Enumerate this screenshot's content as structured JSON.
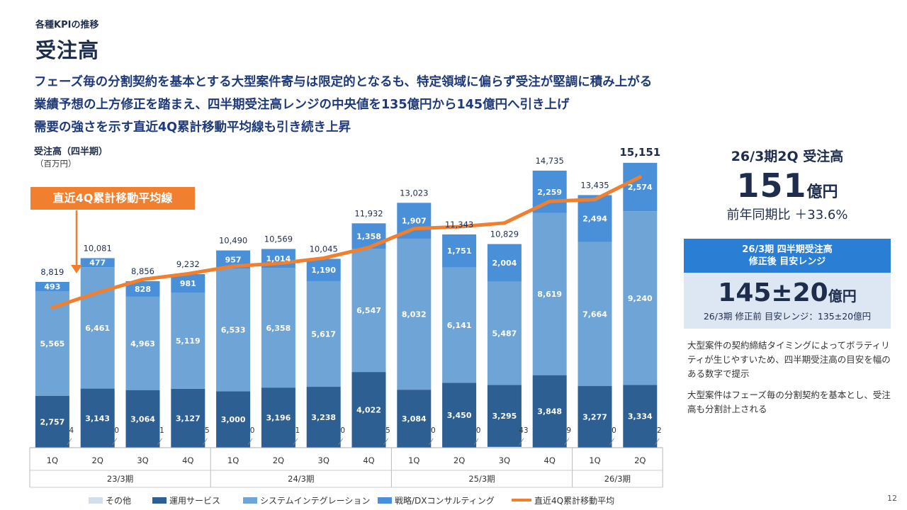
{
  "section": "各種KPIの推移",
  "title": "受注高",
  "headlines": [
    "フェーズ毎の分割契約を基本とする大型案件寄与は限定的となるも、特定領域に偏らず受注が堅調に積み上がる",
    "業績予想の上方修正を踏まえ、四半期受注高レンジの中央値を135億円から145億円へ引き上げ",
    "需要の強さを示す直近4Q累計移動平均線も引き続き上昇"
  ],
  "chart_data": {
    "type": "bar",
    "stacked": true,
    "title": "受注高（四半期）",
    "unit_label": "（百万円）",
    "callout": "直近4Q累計移動平均線",
    "categories": [
      "1Q",
      "2Q",
      "3Q",
      "4Q",
      "1Q",
      "2Q",
      "3Q",
      "4Q",
      "1Q",
      "2Q",
      "3Q",
      "4Q",
      "1Q",
      "2Q"
    ],
    "periods": [
      {
        "label": "23/3期",
        "count": 4
      },
      {
        "label": "24/3期",
        "count": 4
      },
      {
        "label": "25/3期",
        "count": 4
      },
      {
        "label": "26/3期",
        "count": 2
      }
    ],
    "series": [
      {
        "name": "その他",
        "color": "#d4dfec",
        "values": [
          4,
          0,
          1,
          5,
          0,
          1,
          0,
          5,
          0,
          0,
          43,
          9,
          0,
          2
        ]
      },
      {
        "name": "運用サービス",
        "color": "#2d5f93",
        "values": [
          2757,
          3143,
          3064,
          3127,
          3000,
          3196,
          3238,
          4022,
          3084,
          3450,
          3295,
          3848,
          3277,
          3334
        ]
      },
      {
        "name": "システムインテグレーション",
        "color": "#6fa5d6",
        "values": [
          5565,
          6461,
          4963,
          5119,
          6533,
          6358,
          5617,
          6547,
          8032,
          6141,
          5487,
          8619,
          7664,
          9240
        ]
      },
      {
        "name": "戦略/DXコンサルティング",
        "color": "#4a90d9",
        "values": [
          493,
          477,
          828,
          981,
          957,
          1014,
          1190,
          1358,
          1907,
          1751,
          2004,
          2259,
          2494,
          2574
        ]
      }
    ],
    "totals": [
      "8,819",
      "10,081",
      "8,856",
      "9,232",
      "10,490",
      "10,569",
      "10,045",
      "11,932",
      "13,023",
      "11,343",
      "10,829",
      "14,735",
      "13,435",
      "15,151"
    ],
    "moving_average": {
      "name": "直近4Q累計移動平均",
      "color": "#f07f2f",
      "values": [
        7450,
        8250,
        8950,
        9250,
        9650,
        9800,
        10080,
        10650,
        11650,
        11750,
        11950,
        13100,
        13200,
        14400
      ]
    },
    "ylim": [
      0,
      16200
    ]
  },
  "kpi": {
    "label": "26/3期2Q 受注高",
    "value": "151",
    "unit": "億円",
    "yoy": "前年同期比 ＋33.6%"
  },
  "range": {
    "head_line1": "26/3期 四半期受注高",
    "head_line2": "修正後 目安レンジ",
    "value": "145±20",
    "unit": "億円",
    "previous": "26/3期 修正前 目安レンジ：135±20億円"
  },
  "notes": [
    "大型案件の契約締結タイミングによってボラティリティが生じやすいため、四半期受注高の目安を幅のある数字で提示",
    "大型案件はフェーズ毎の分割契約を基本とし、受注高も分割計上される"
  ],
  "page_number": "12"
}
